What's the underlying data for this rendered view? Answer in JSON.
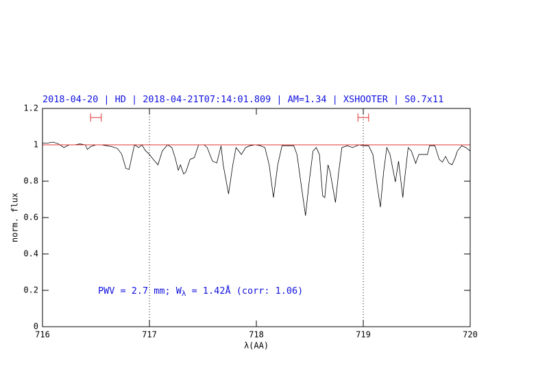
{
  "chart_data": {
    "type": "line",
    "title": "2018-04-20 | HD | 2018-04-21T07:14:01.809 | AM=1.34 | XSHOOTER | S0.7x11",
    "x_label": "λ(AA)",
    "y_label": "norm. flux",
    "annotation": [
      "PWV = 2.7 mm; W",
      "λ",
      " = 1.42Å (corr: 1.06)"
    ],
    "xlim": [
      716,
      720
    ],
    "ylim": [
      0,
      1.2
    ],
    "xticks": [
      716,
      717,
      718,
      719,
      720
    ],
    "yticks": [
      0,
      0.2,
      0.4,
      0.6,
      0.8,
      1,
      1.2
    ],
    "reference_line": {
      "value": 1,
      "color": "#e03030"
    },
    "vlines": [
      717,
      719
    ],
    "ranges": [
      {
        "x": [
          716.45,
          716.55
        ],
        "y": 1.15,
        "color": "#e03030"
      },
      {
        "x": [
          718.95,
          719.05
        ],
        "y": 1.15,
        "color": "#e03030"
      }
    ],
    "x": [
      716.0,
      716.05,
      716.1,
      716.15,
      716.2,
      716.25,
      716.3,
      716.35,
      716.4,
      716.42,
      716.45,
      716.5,
      716.55,
      716.6,
      716.65,
      716.7,
      716.74,
      716.78,
      716.81,
      716.86,
      716.9,
      716.93,
      716.96,
      717.0,
      717.04,
      717.08,
      717.12,
      717.17,
      717.21,
      717.24,
      717.27,
      717.29,
      717.32,
      717.34,
      717.38,
      717.42,
      717.46,
      717.51,
      717.54,
      717.59,
      717.63,
      717.67,
      717.69,
      717.74,
      717.78,
      717.81,
      717.86,
      717.9,
      717.94,
      717.99,
      718.04,
      718.08,
      718.12,
      718.16,
      718.2,
      718.24,
      718.29,
      718.35,
      718.38,
      718.42,
      718.46,
      718.49,
      718.53,
      718.56,
      718.59,
      718.62,
      718.64,
      718.67,
      718.69,
      718.74,
      718.77,
      718.8,
      718.85,
      718.9,
      718.96,
      719.0,
      719.05,
      719.09,
      719.13,
      719.16,
      719.19,
      719.22,
      719.25,
      719.3,
      719.33,
      719.37,
      719.38,
      719.42,
      719.45,
      719.49,
      719.52,
      719.56,
      719.6,
      719.62,
      719.67,
      719.71,
      719.74,
      719.77,
      719.8,
      719.83,
      719.86,
      719.88,
      719.92,
      719.96,
      720.0
    ],
    "series": [
      {
        "color": "#000000",
        "values": [
          1.01,
          1.01,
          1.015,
          1.005,
          0.985,
          1.0,
          1.0,
          1.005,
          1.0,
          0.975,
          0.99,
          1.0,
          1.0,
          0.995,
          0.99,
          0.98,
          0.95,
          0.87,
          0.865,
          1.0,
          0.985,
          1.0,
          0.97,
          0.947,
          0.917,
          0.89,
          0.966,
          1.0,
          0.985,
          0.93,
          0.86,
          0.89,
          0.84,
          0.85,
          0.92,
          0.93,
          1.0,
          1.0,
          0.985,
          0.91,
          0.9,
          0.995,
          0.89,
          0.73,
          0.89,
          0.985,
          0.947,
          0.985,
          0.995,
          1.0,
          0.995,
          0.985,
          0.89,
          0.71,
          0.89,
          0.995,
          0.995,
          0.995,
          0.947,
          0.777,
          0.61,
          0.777,
          0.966,
          0.985,
          0.947,
          0.72,
          0.71,
          0.89,
          0.85,
          0.683,
          0.85,
          0.985,
          0.995,
          0.985,
          1.0,
          0.995,
          0.995,
          0.947,
          0.777,
          0.657,
          0.85,
          0.985,
          0.947,
          0.796,
          0.91,
          0.71,
          0.777,
          0.985,
          0.966,
          0.898,
          0.947,
          0.947,
          0.947,
          0.995,
          0.995,
          0.92,
          0.905,
          0.936,
          0.9,
          0.89,
          0.93,
          0.966,
          0.995,
          0.985,
          0.966
        ]
      }
    ]
  }
}
